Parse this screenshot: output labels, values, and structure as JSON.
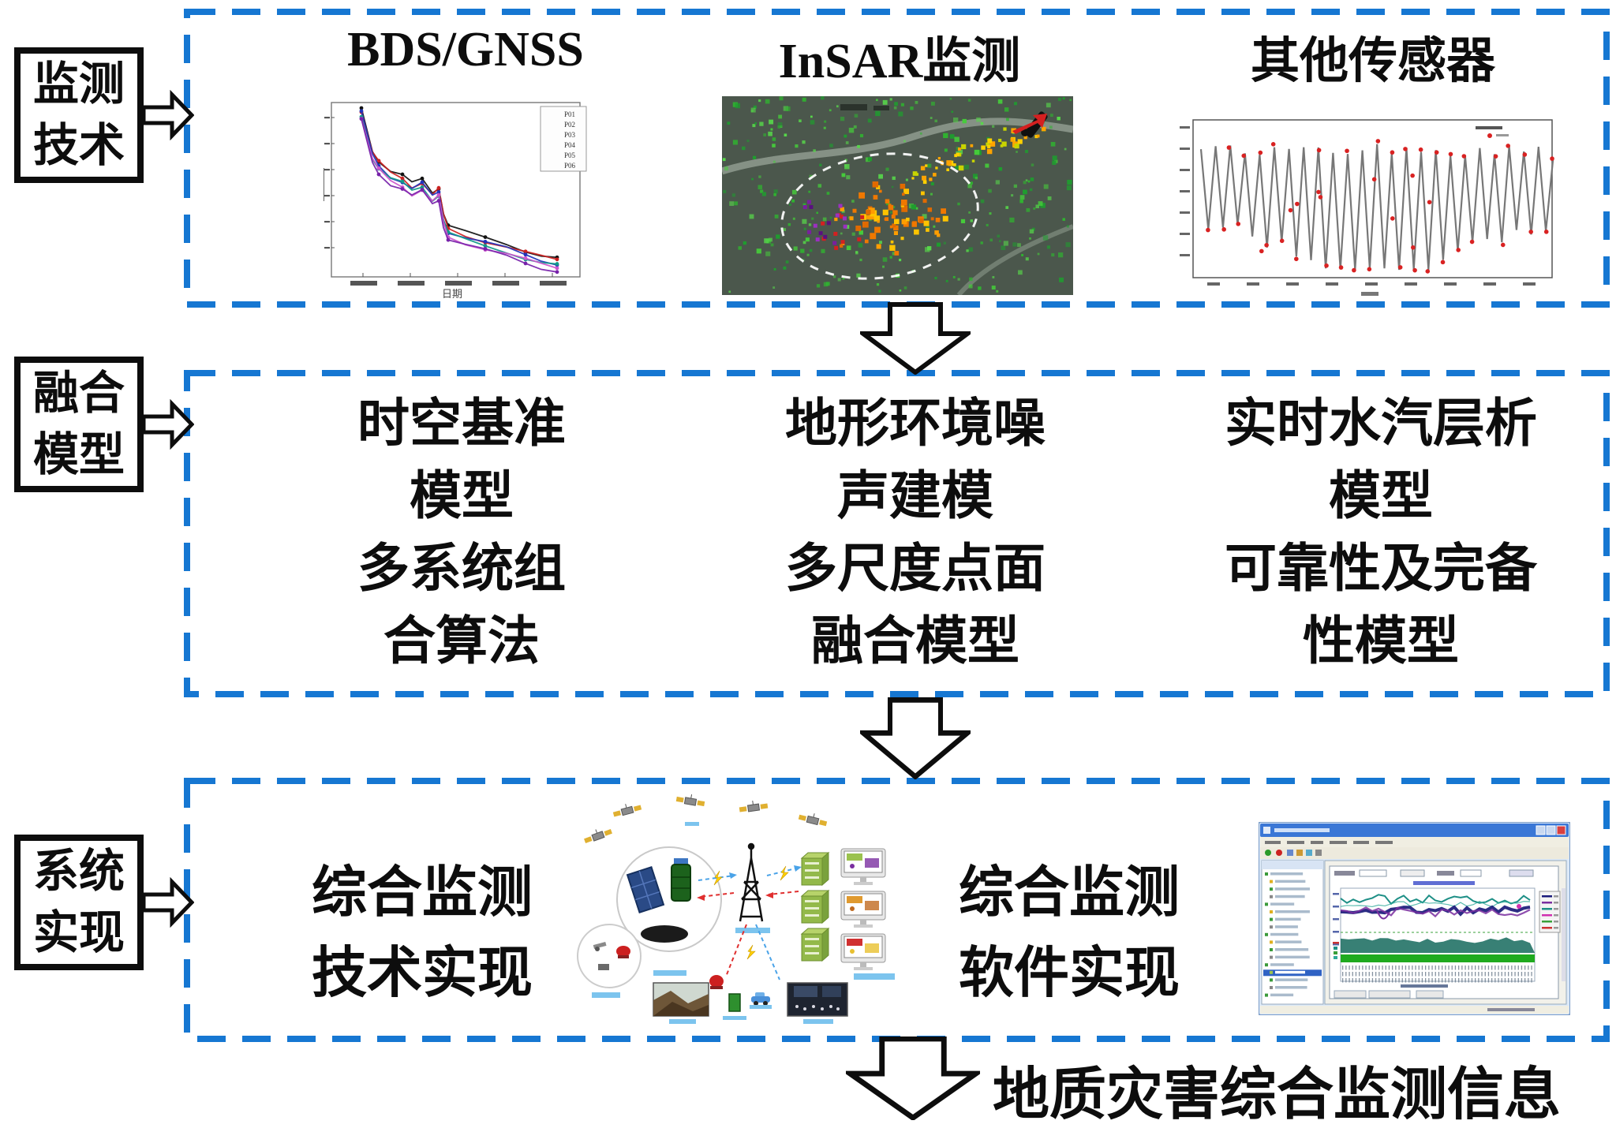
{
  "colors": {
    "dashed_box_border": "#1677d2",
    "solid_border": "#0d0d0d",
    "background": "#ffffff",
    "bds_series": [
      "#111111",
      "#cc2222",
      "#2233bb",
      "#119988",
      "#cc55cc",
      "#7722aa"
    ],
    "sensor_line": "#777777",
    "sensor_marker": "#d92222"
  },
  "rows": {
    "monitoring": {
      "label_line1": "监测",
      "label_line2": "技术",
      "bds": {
        "title": "BDS/GNSS",
        "xlabel": "日期",
        "legend": [
          "P01",
          "P02",
          "P03",
          "P04",
          "P05",
          "P06"
        ]
      },
      "insar": {
        "title": "InSAR监测"
      },
      "sensors": {
        "title": "其他传感器"
      }
    },
    "fusion": {
      "label_line1": "融合",
      "label_line2": "模型",
      "col1_lines": [
        "时空基准",
        "模型",
        "多系统组",
        "合算法"
      ],
      "col2_lines": [
        "地形环境噪",
        "声建模",
        "多尺度点面",
        "融合模型"
      ],
      "col3_lines": [
        "实时水汽层析",
        "模型",
        "可靠性及完备",
        "性模型"
      ]
    },
    "system": {
      "label_line1": "系统",
      "label_line2": "实现",
      "col1_lines": [
        "综合监测",
        "技术实现"
      ],
      "col2_lines": [
        "综合监测",
        "软件实现"
      ]
    }
  },
  "footer": {
    "text": "地质灾害综合监测信息"
  }
}
